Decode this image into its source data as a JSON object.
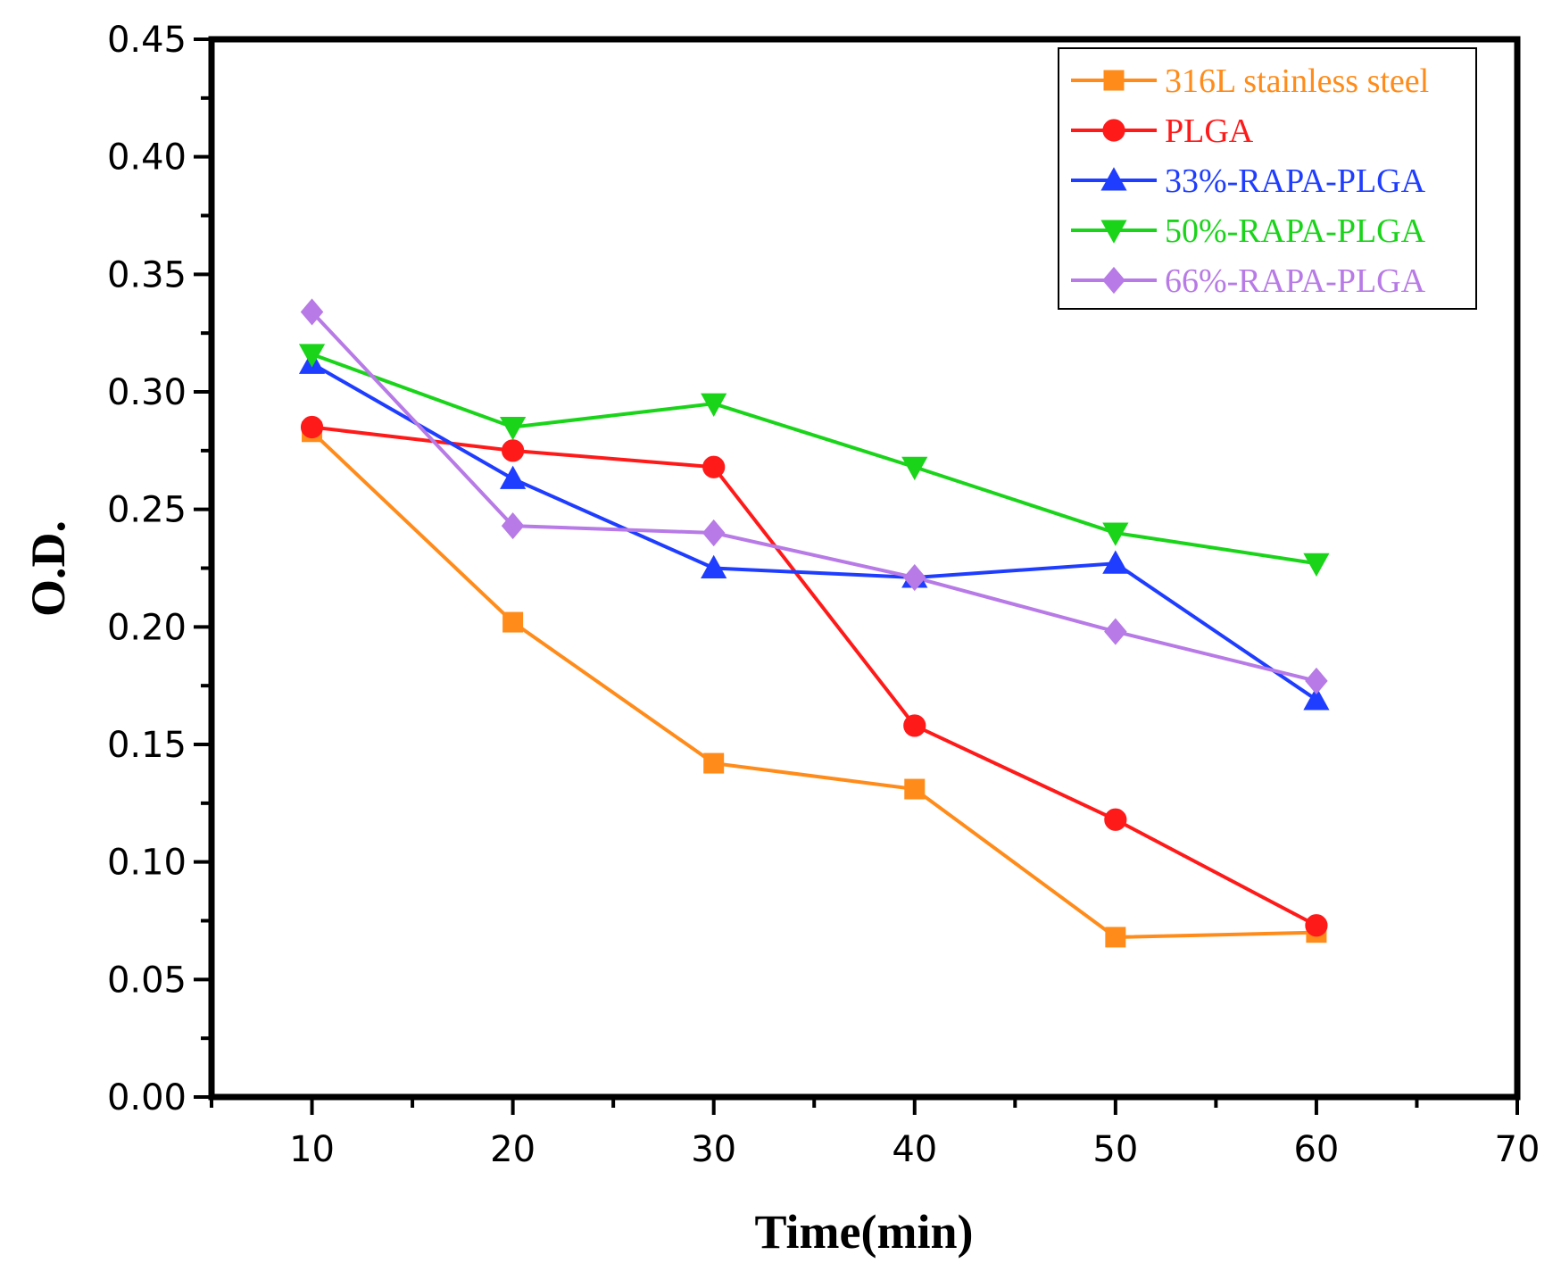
{
  "chart_data": {
    "type": "line",
    "title": "",
    "xlabel": "Time(min)",
    "ylabel": "O.D.",
    "xlim": [
      5,
      70
    ],
    "ylim": [
      0,
      0.45
    ],
    "x": [
      10,
      20,
      30,
      40,
      50,
      60
    ],
    "xticks": [
      10,
      20,
      30,
      40,
      50,
      60,
      70
    ],
    "xtick_labels": [
      "10",
      "20",
      "30",
      "40",
      "50",
      "60",
      "70"
    ],
    "yticks": [
      0,
      0.05,
      0.1,
      0.15,
      0.2,
      0.25,
      0.3,
      0.35,
      0.4,
      0.45
    ],
    "ytick_labels": [
      "0.00",
      "0.05",
      "0.10",
      "0.15",
      "0.20",
      "0.25",
      "0.30",
      "0.35",
      "0.40",
      "0.45"
    ],
    "grid": false,
    "legend_position": "top-right",
    "series": [
      {
        "name": "316L stainless steel",
        "color": "#ff8c1a",
        "marker": "square",
        "values": [
          0.283,
          0.202,
          0.142,
          0.131,
          0.068,
          0.07
        ]
      },
      {
        "name": "PLGA",
        "color": "#ff1a1a",
        "marker": "circle",
        "values": [
          0.285,
          0.275,
          0.268,
          0.158,
          0.118,
          0.073
        ]
      },
      {
        "name": "33%-RAPA-PLGA",
        "color": "#1f3dff",
        "marker": "triangle-up",
        "values": [
          0.312,
          0.263,
          0.225,
          0.221,
          0.227,
          0.169
        ]
      },
      {
        "name": "50%-RAPA-PLGA",
        "color": "#1ad41a",
        "marker": "triangle-down",
        "values": [
          0.316,
          0.285,
          0.295,
          0.268,
          0.24,
          0.227
        ]
      },
      {
        "name": "66%-RAPA-PLGA",
        "color": "#b77ae6",
        "marker": "diamond",
        "values": [
          0.334,
          0.243,
          0.24,
          0.221,
          0.198,
          0.177
        ]
      }
    ]
  }
}
